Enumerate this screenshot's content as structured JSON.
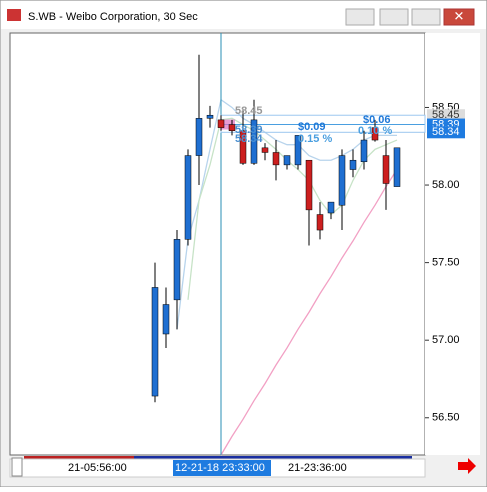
{
  "chart_data": {
    "type": "candlestick",
    "title": "S.WB - Weibo Corporation, 30 Sec",
    "open": [
      56.64,
      57.04,
      57.26,
      57.65,
      58.19,
      58.43,
      58.42,
      58.39,
      58.35,
      58.14,
      58.24,
      58.21,
      58.13,
      58.13,
      58.16,
      57.81,
      57.82,
      57.87,
      58.1,
      58.15,
      58.37,
      58.19,
      57.99
    ],
    "high": [
      57.5,
      57.34,
      57.71,
      58.23,
      58.84,
      58.51,
      58.45,
      58.42,
      58.48,
      58.55,
      58.27,
      58.29,
      58.19,
      58.32,
      58.16,
      57.89,
      57.89,
      58.23,
      58.23,
      58.35,
      58.42,
      58.29,
      58.24
    ],
    "low": [
      56.6,
      56.95,
      57.07,
      57.61,
      58.0,
      58.37,
      58.35,
      58.32,
      58.13,
      58.13,
      58.16,
      58.03,
      58.1,
      58.1,
      57.61,
      57.65,
      57.78,
      57.71,
      58.05,
      58.1,
      58.28,
      57.84,
      57.99
    ],
    "close": [
      57.34,
      57.23,
      57.65,
      58.19,
      58.43,
      58.45,
      58.37,
      58.35,
      58.14,
      58.42,
      58.21,
      58.13,
      58.19,
      58.32,
      57.84,
      57.71,
      57.89,
      58.19,
      58.16,
      58.29,
      58.29,
      58.01,
      58.24
    ],
    "up_color": "#1f6fd1",
    "down_color": "#cc1f1f",
    "lines": [
      {
        "color": "#b8d4ec",
        "values": [
          null,
          null,
          57.07,
          57.65,
          57.9,
          58.23,
          58.55,
          58.5,
          58.43,
          58.39,
          58.34,
          58.29,
          58.26,
          58.26,
          58.19,
          58.16,
          58.16,
          58.19,
          58.23,
          58.29,
          58.32,
          58.32,
          58.32
        ]
      },
      {
        "color": "#c7e3c7",
        "values": [
          null,
          null,
          null,
          57.26,
          57.9,
          58.13,
          58.42,
          58.43,
          58.39,
          58.35,
          58.29,
          58.23,
          58.16,
          58.1,
          58.03,
          57.9,
          57.81,
          57.87,
          58.03,
          58.16,
          58.23,
          58.26,
          58.29
        ]
      },
      {
        "color": "#f2a0c4",
        "values": [
          null,
          null,
          null,
          null,
          null,
          null,
          56.26,
          56.38,
          56.49,
          56.61,
          56.72,
          56.84,
          56.95,
          57.07,
          57.18,
          57.3,
          57.41,
          57.53,
          57.64,
          57.76,
          57.87,
          57.99,
          58.1
        ]
      }
    ],
    "ylim": [
      56.26,
      58.98
    ],
    "yticks": [
      {
        "value": 56.5,
        "label": "56.50"
      },
      {
        "value": 57,
        "label": "57.00"
      },
      {
        "value": 57.5,
        "label": "57.50"
      },
      {
        "value": 58,
        "label": "58.00"
      },
      {
        "value": 58.5,
        "label": "58.50"
      }
    ],
    "price_tags": [
      58.45,
      58.39,
      58.34
    ],
    "annotations": [
      "58.45",
      "58.39",
      "58.34",
      "$0.09",
      "0.15 %",
      "$0.06",
      "0.10 %"
    ],
    "x_labels": [
      "21-05:56:00",
      "12-21-18 23:33:00",
      "21-23:36:00"
    ]
  }
}
